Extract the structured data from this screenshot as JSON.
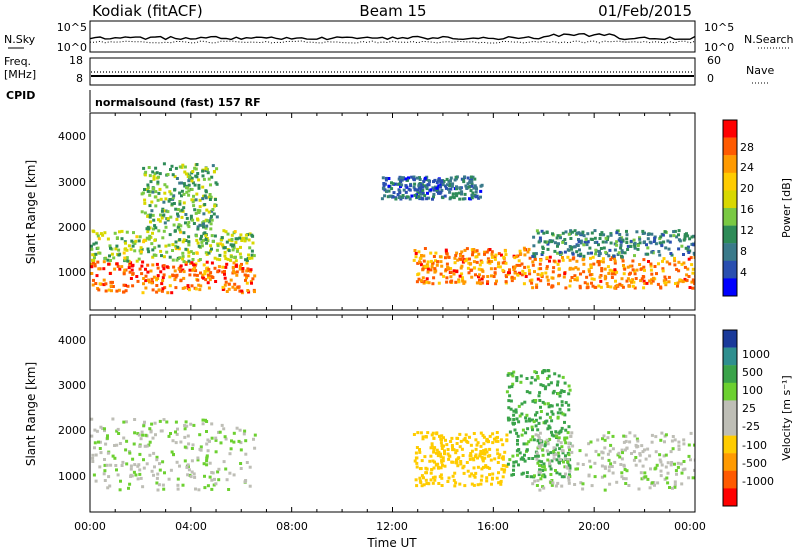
{
  "header": {
    "station": "Kodiak (fitACF)",
    "beam": "Beam 15",
    "date": "01/Feb/2015"
  },
  "noise_panel": {
    "left_label": "N.Sky",
    "right_label": "N.Search",
    "left_ticks": [
      "10^5",
      "10^0"
    ],
    "right_ticks": [
      "10^5",
      "10^0"
    ]
  },
  "freq_panel": {
    "left_label_1": "Freq.",
    "left_label_2": "[MHz]",
    "left_ticks": [
      "18",
      "8"
    ],
    "right_label": "Nave",
    "right_ticks": [
      "60",
      "0"
    ]
  },
  "cpid_panel": {
    "label": "CPID",
    "program": "normalsound (fast) 157 RF"
  },
  "range_axis": {
    "label": "Slant Range [km]",
    "ticks": [
      "4000",
      "3000",
      "2000",
      "1000"
    ]
  },
  "time_axis": {
    "label": "Time UT",
    "ticks": [
      "00:00",
      "04:00",
      "08:00",
      "12:00",
      "16:00",
      "20:00",
      "00:00"
    ]
  },
  "power_scale": {
    "label": "Power [dB]",
    "ticks": [
      "28",
      "24",
      "20",
      "16",
      "12",
      "8",
      "4"
    ],
    "colors": [
      "#ff0000",
      "#ff5a00",
      "#ff9a00",
      "#ffcc00",
      "#d8d800",
      "#7ac943",
      "#2e8b57",
      "#3a7a8a",
      "#2a4fb0",
      "#0000ff"
    ]
  },
  "velocity_scale": {
    "label": "Velocity [m s⁻¹]",
    "ticks": [
      "1000",
      "500",
      "100",
      "25",
      "-25",
      "-100",
      "-500",
      "-1000"
    ],
    "colors": [
      "#1a3a9a",
      "#2f8f8f",
      "#3aa34a",
      "#6cd030",
      "#bebeb6",
      "#bebeb6",
      "#ffcc00",
      "#ff9a00",
      "#ff5a00",
      "#ff0000"
    ]
  },
  "chart_data": {
    "type": "heatmap",
    "x_unit": "hours UT",
    "x_range": [
      0,
      24
    ],
    "y_range_km": [
      180,
      4600
    ],
    "power_echoes_dB": [
      {
        "t0": 0,
        "t1": 6.5,
        "r0": 600,
        "r1": 1300,
        "value": 26
      },
      {
        "t0": 0,
        "t1": 6.5,
        "r0": 1300,
        "r1": 2000,
        "value": 14
      },
      {
        "t0": 2,
        "t1": 5,
        "r0": 2000,
        "r1": 3500,
        "value": 12
      },
      {
        "t0": 12.8,
        "t1": 17.5,
        "r0": 800,
        "r1": 1600,
        "value": 24
      },
      {
        "t0": 11.5,
        "t1": 15.5,
        "r0": 2700,
        "r1": 3200,
        "value": 6
      },
      {
        "t0": 17.5,
        "t1": 24,
        "r0": 700,
        "r1": 1400,
        "value": 24
      },
      {
        "t0": 17.5,
        "t1": 24,
        "r0": 1400,
        "r1": 2000,
        "value": 8
      }
    ],
    "velocity_echoes_ms": [
      {
        "t0": 0,
        "t1": 6.5,
        "r0": 700,
        "r1": 2300,
        "value": 0
      },
      {
        "t0": 12.8,
        "t1": 16.5,
        "r0": 800,
        "r1": 2000,
        "value": -300
      },
      {
        "t0": 16.5,
        "t1": 19,
        "r0": 1000,
        "r1": 3400,
        "value": 150
      },
      {
        "t0": 17.5,
        "t1": 24,
        "r0": 700,
        "r1": 2000,
        "value": 0
      }
    ]
  }
}
